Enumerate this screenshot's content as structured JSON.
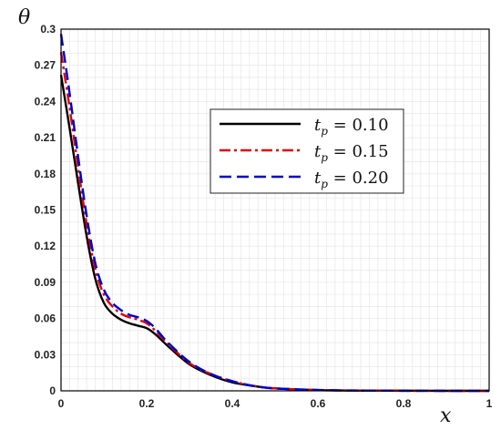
{
  "chart_data": {
    "type": "line",
    "title": "",
    "xlabel": "x",
    "ylabel": "θ",
    "xlim": [
      0,
      1
    ],
    "ylim": [
      0,
      0.3
    ],
    "x_ticks": [
      "0",
      "0.2",
      "0.4",
      "0.6",
      "0.8",
      "1"
    ],
    "y_ticks": [
      "0",
      "0.03",
      "0.06",
      "0.09",
      "0.12",
      "0.15",
      "0.18",
      "0.21",
      "0.24",
      "0.27",
      "0.3"
    ],
    "grid": true,
    "legend_position": "top-right",
    "series": [
      {
        "name": "t_p = 0.10",
        "label_main": "t",
        "label_sub": "p",
        "label_value": " = 0.10",
        "color": "#000000",
        "dash": "solid",
        "x": [
          0,
          0.02,
          0.04,
          0.06,
          0.08,
          0.1,
          0.12,
          0.14,
          0.16,
          0.18,
          0.2,
          0.22,
          0.25,
          0.3,
          0.35,
          0.4,
          0.45,
          0.5,
          0.6,
          0.7,
          0.8,
          0.9,
          1.0
        ],
        "y": [
          0.262,
          0.218,
          0.172,
          0.128,
          0.093,
          0.073,
          0.064,
          0.059,
          0.056,
          0.054,
          0.052,
          0.047,
          0.037,
          0.022,
          0.013,
          0.007,
          0.004,
          0.002,
          0.0006,
          0.0002,
          0.0001,
          0.0,
          0.0
        ]
      },
      {
        "name": "t_p = 0.15",
        "label_main": "t",
        "label_sub": "p",
        "label_value": " = 0.15",
        "color": "#e00000",
        "dash": "dashdot",
        "x": [
          0,
          0.02,
          0.04,
          0.06,
          0.08,
          0.1,
          0.12,
          0.14,
          0.16,
          0.18,
          0.2,
          0.22,
          0.25,
          0.3,
          0.35,
          0.4,
          0.45,
          0.5,
          0.6,
          0.7,
          0.8,
          0.9,
          1.0
        ],
        "y": [
          0.281,
          0.235,
          0.185,
          0.138,
          0.101,
          0.08,
          0.07,
          0.064,
          0.061,
          0.059,
          0.056,
          0.05,
          0.039,
          0.023,
          0.014,
          0.008,
          0.004,
          0.002,
          0.0007,
          0.0002,
          0.0001,
          0.0,
          0.0
        ]
      },
      {
        "name": "t_p = 0.20",
        "label_main": "t",
        "label_sub": "p",
        "label_value": " = 0.20",
        "color": "#0000d0",
        "dash": "dash",
        "x": [
          0,
          0.02,
          0.04,
          0.06,
          0.08,
          0.1,
          0.12,
          0.14,
          0.16,
          0.18,
          0.2,
          0.22,
          0.25,
          0.3,
          0.35,
          0.4,
          0.45,
          0.5,
          0.6,
          0.7,
          0.8,
          0.9,
          1.0
        ],
        "y": [
          0.296,
          0.247,
          0.194,
          0.145,
          0.106,
          0.084,
          0.073,
          0.067,
          0.063,
          0.061,
          0.058,
          0.052,
          0.04,
          0.024,
          0.014,
          0.008,
          0.004,
          0.002,
          0.0007,
          0.0002,
          0.0001,
          0.0,
          0.0
        ]
      }
    ]
  }
}
